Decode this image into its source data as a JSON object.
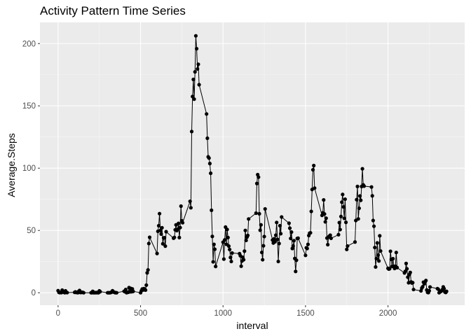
{
  "chart_data": {
    "type": "line",
    "title": "Activity Pattern Time Series",
    "xlabel": "interval",
    "ylabel": "Average.Steps",
    "xlim": [
      -110,
      2465
    ],
    "ylim": [
      -10,
      217
    ],
    "x_ticks": [
      0,
      500,
      1000,
      1500,
      2000
    ],
    "y_ticks": [
      0,
      50,
      100,
      150,
      200
    ],
    "grid": true,
    "colors": {
      "panel": "#EBEBEB",
      "grid_major": "#FFFFFF",
      "grid_minor": "#F5F5F5",
      "line": "#000000",
      "point": "#000000",
      "tick_text": "#4D4D4D"
    },
    "series": [
      {
        "points": [
          [
            0,
            1.7
          ],
          [
            5,
            0.3
          ],
          [
            10,
            0.1
          ],
          [
            15,
            0.2
          ],
          [
            20,
            0.1
          ],
          [
            25,
            2.1
          ],
          [
            30,
            0.5
          ],
          [
            35,
            0.9
          ],
          [
            40,
            0
          ],
          [
            45,
            1.5
          ],
          [
            50,
            0.3
          ],
          [
            55,
            0.1
          ],
          [
            100,
            0.3
          ],
          [
            105,
            0.7
          ],
          [
            110,
            0.2
          ],
          [
            115,
            0.3
          ],
          [
            120,
            0
          ],
          [
            125,
            1.1
          ],
          [
            130,
            1.8
          ],
          [
            135,
            0.2
          ],
          [
            140,
            0.2
          ],
          [
            145,
            0.4
          ],
          [
            150,
            0.3
          ],
          [
            155,
            0
          ],
          [
            200,
            0
          ],
          [
            205,
            0
          ],
          [
            210,
            1.1
          ],
          [
            215,
            0
          ],
          [
            220,
            0
          ],
          [
            225,
            0.1
          ],
          [
            230,
            0
          ],
          [
            235,
            0.2
          ],
          [
            240,
            0
          ],
          [
            245,
            0
          ],
          [
            250,
            1.5
          ],
          [
            255,
            0.9
          ],
          [
            300,
            0
          ],
          [
            305,
            0
          ],
          [
            310,
            0
          ],
          [
            315,
            0
          ],
          [
            320,
            0.2
          ],
          [
            325,
            0.6
          ],
          [
            330,
            1.6
          ],
          [
            335,
            0.6
          ],
          [
            340,
            0.5
          ],
          [
            345,
            0.1
          ],
          [
            350,
            0
          ],
          [
            355,
            0
          ],
          [
            400,
            1.2
          ],
          [
            405,
            0.9
          ],
          [
            410,
            2.6
          ],
          [
            415,
            0
          ],
          [
            420,
            0.3
          ],
          [
            425,
            0.4
          ],
          [
            430,
            4.1
          ],
          [
            435,
            0.7
          ],
          [
            440,
            3.5
          ],
          [
            445,
            0.8
          ],
          [
            450,
            3.1
          ],
          [
            455,
            1.1
          ],
          [
            500,
            0
          ],
          [
            505,
            1.6
          ],
          [
            510,
            3
          ],
          [
            515,
            2.2
          ],
          [
            520,
            3.3
          ],
          [
            525,
            3
          ],
          [
            530,
            2.1
          ],
          [
            535,
            6.1
          ],
          [
            540,
            16
          ],
          [
            545,
            18.3
          ],
          [
            550,
            39.5
          ],
          [
            555,
            44.5
          ],
          [
            600,
            31.5
          ],
          [
            605,
            49.3
          ],
          [
            610,
            53.8
          ],
          [
            615,
            63.5
          ],
          [
            620,
            50
          ],
          [
            625,
            47.1
          ],
          [
            630,
            52.2
          ],
          [
            635,
            39.3
          ],
          [
            640,
            44
          ],
          [
            645,
            44.2
          ],
          [
            650,
            37.4
          ],
          [
            655,
            49
          ],
          [
            700,
            43.8
          ],
          [
            705,
            44.4
          ],
          [
            710,
            50.5
          ],
          [
            715,
            54.5
          ],
          [
            720,
            49.9
          ],
          [
            725,
            51
          ],
          [
            730,
            55.7
          ],
          [
            735,
            44.3
          ],
          [
            740,
            52.3
          ],
          [
            745,
            69.5
          ],
          [
            750,
            57.8
          ],
          [
            755,
            56.2
          ],
          [
            800,
            73.4
          ],
          [
            805,
            68.2
          ],
          [
            810,
            129.4
          ],
          [
            815,
            157.5
          ],
          [
            820,
            171.2
          ],
          [
            825,
            155.4
          ],
          [
            830,
            177.3
          ],
          [
            835,
            206.2
          ],
          [
            840,
            195.9
          ],
          [
            845,
            179.6
          ],
          [
            850,
            183.4
          ],
          [
            855,
            167
          ],
          [
            900,
            143.5
          ],
          [
            905,
            124
          ],
          [
            910,
            109.1
          ],
          [
            915,
            108.1
          ],
          [
            920,
            103.7
          ],
          [
            925,
            95.9
          ],
          [
            930,
            66.2
          ],
          [
            935,
            45.2
          ],
          [
            940,
            24.8
          ],
          [
            945,
            38.8
          ],
          [
            950,
            34.9
          ],
          [
            955,
            21.1
          ],
          [
            1000,
            40.6
          ],
          [
            1005,
            27
          ],
          [
            1010,
            42.4
          ],
          [
            1015,
            52.7
          ],
          [
            1020,
            38.9
          ],
          [
            1025,
            50.8
          ],
          [
            1030,
            44.3
          ],
          [
            1035,
            37.4
          ],
          [
            1040,
            34.7
          ],
          [
            1045,
            28.3
          ],
          [
            1050,
            25.1
          ],
          [
            1055,
            31.9
          ],
          [
            1100,
            31.4
          ],
          [
            1105,
            29.7
          ],
          [
            1110,
            21.3
          ],
          [
            1115,
            25.5
          ],
          [
            1120,
            28.4
          ],
          [
            1125,
            26.5
          ],
          [
            1130,
            33.4
          ],
          [
            1135,
            50
          ],
          [
            1140,
            42
          ],
          [
            1145,
            44.6
          ],
          [
            1150,
            46
          ],
          [
            1155,
            59.2
          ],
          [
            1200,
            63.9
          ],
          [
            1205,
            87.7
          ],
          [
            1210,
            94.8
          ],
          [
            1215,
            92.8
          ],
          [
            1220,
            63.4
          ],
          [
            1225,
            50.2
          ],
          [
            1230,
            54.5
          ],
          [
            1235,
            32.4
          ],
          [
            1240,
            26.5
          ],
          [
            1245,
            37.7
          ],
          [
            1250,
            45.1
          ],
          [
            1255,
            67.3
          ],
          [
            1300,
            42.3
          ],
          [
            1305,
            39.9
          ],
          [
            1310,
            43.3
          ],
          [
            1315,
            40.9
          ],
          [
            1320,
            46.2
          ],
          [
            1325,
            56.4
          ],
          [
            1330,
            42.8
          ],
          [
            1335,
            25.1
          ],
          [
            1340,
            39.5
          ],
          [
            1345,
            53.8
          ],
          [
            1350,
            47.4
          ],
          [
            1355,
            60.8
          ],
          [
            1400,
            55.8
          ],
          [
            1405,
            51.8
          ],
          [
            1410,
            43.6
          ],
          [
            1415,
            48.7
          ],
          [
            1420,
            35.5
          ],
          [
            1425,
            37.5
          ],
          [
            1430,
            41.8
          ],
          [
            1435,
            27.5
          ],
          [
            1440,
            17.1
          ],
          [
            1445,
            26.1
          ],
          [
            1450,
            43.6
          ],
          [
            1455,
            43.8
          ],
          [
            1500,
            30
          ],
          [
            1505,
            36.1
          ],
          [
            1510,
            35.5
          ],
          [
            1515,
            38.8
          ],
          [
            1520,
            45.9
          ],
          [
            1525,
            47.8
          ],
          [
            1530,
            48.1
          ],
          [
            1535,
            65.3
          ],
          [
            1540,
            82.9
          ],
          [
            1545,
            98.7
          ],
          [
            1550,
            102.1
          ],
          [
            1555,
            84
          ],
          [
            1600,
            62.1
          ],
          [
            1605,
            64.1
          ],
          [
            1610,
            74.5
          ],
          [
            1615,
            63.2
          ],
          [
            1620,
            56.9
          ],
          [
            1625,
            59.8
          ],
          [
            1630,
            43.9
          ],
          [
            1635,
            38.6
          ],
          [
            1640,
            44.7
          ],
          [
            1645,
            45.5
          ],
          [
            1650,
            46.2
          ],
          [
            1655,
            43.7
          ],
          [
            1700,
            46.6
          ],
          [
            1705,
            56.3
          ],
          [
            1710,
            50.7
          ],
          [
            1715,
            61.2
          ],
          [
            1720,
            72.7
          ],
          [
            1725,
            78.9
          ],
          [
            1730,
            68.9
          ],
          [
            1735,
            59.7
          ],
          [
            1740,
            75.1
          ],
          [
            1745,
            56.5
          ],
          [
            1750,
            34.8
          ],
          [
            1755,
            37.5
          ],
          [
            1800,
            40.7
          ],
          [
            1805,
            58
          ],
          [
            1810,
            74.7
          ],
          [
            1815,
            85.3
          ],
          [
            1820,
            59.3
          ],
          [
            1825,
            67.8
          ],
          [
            1830,
            77.7
          ],
          [
            1835,
            74.2
          ],
          [
            1840,
            85.3
          ],
          [
            1845,
            99.5
          ],
          [
            1850,
            86.6
          ],
          [
            1855,
            85.6
          ],
          [
            1900,
            84.9
          ],
          [
            1905,
            77.8
          ],
          [
            1910,
            58
          ],
          [
            1915,
            53.4
          ],
          [
            1920,
            36.3
          ],
          [
            1925,
            20.7
          ],
          [
            1930,
            27.4
          ],
          [
            1935,
            40
          ],
          [
            1940,
            30.2
          ],
          [
            1945,
            25.5
          ],
          [
            1950,
            45.7
          ],
          [
            1955,
            33.5
          ],
          [
            2000,
            19.6
          ],
          [
            2005,
            19
          ],
          [
            2010,
            19.3
          ],
          [
            2015,
            33.3
          ],
          [
            2020,
            26.8
          ],
          [
            2025,
            21.2
          ],
          [
            2030,
            27.3
          ],
          [
            2035,
            21.3
          ],
          [
            2040,
            19.5
          ],
          [
            2045,
            21.3
          ],
          [
            2050,
            32.3
          ],
          [
            2055,
            20.2
          ],
          [
            2100,
            15.9
          ],
          [
            2105,
            17.2
          ],
          [
            2110,
            23.5
          ],
          [
            2115,
            19.2
          ],
          [
            2120,
            12.5
          ],
          [
            2125,
            8
          ],
          [
            2130,
            14.7
          ],
          [
            2135,
            16.3
          ],
          [
            2140,
            8.7
          ],
          [
            2145,
            7.8
          ],
          [
            2150,
            8.1
          ],
          [
            2155,
            2.6
          ],
          [
            2200,
            1.5
          ],
          [
            2205,
            3.7
          ],
          [
            2210,
            4.8
          ],
          [
            2215,
            8.5
          ],
          [
            2220,
            7.1
          ],
          [
            2225,
            8.7
          ],
          [
            2230,
            9.8
          ],
          [
            2235,
            2.2
          ],
          [
            2240,
            0.3
          ],
          [
            2245,
            0.1
          ],
          [
            2250,
            1.6
          ],
          [
            2255,
            4.6
          ],
          [
            2300,
            3.3
          ],
          [
            2305,
            2.8
          ],
          [
            2310,
            0
          ],
          [
            2315,
            0.8
          ],
          [
            2320,
            1
          ],
          [
            2325,
            1.6
          ],
          [
            2330,
            2.6
          ],
          [
            2335,
            4.7
          ],
          [
            2340,
            3.3
          ],
          [
            2345,
            0.6
          ],
          [
            2350,
            0.2
          ],
          [
            2355,
            1.1
          ]
        ]
      }
    ]
  }
}
